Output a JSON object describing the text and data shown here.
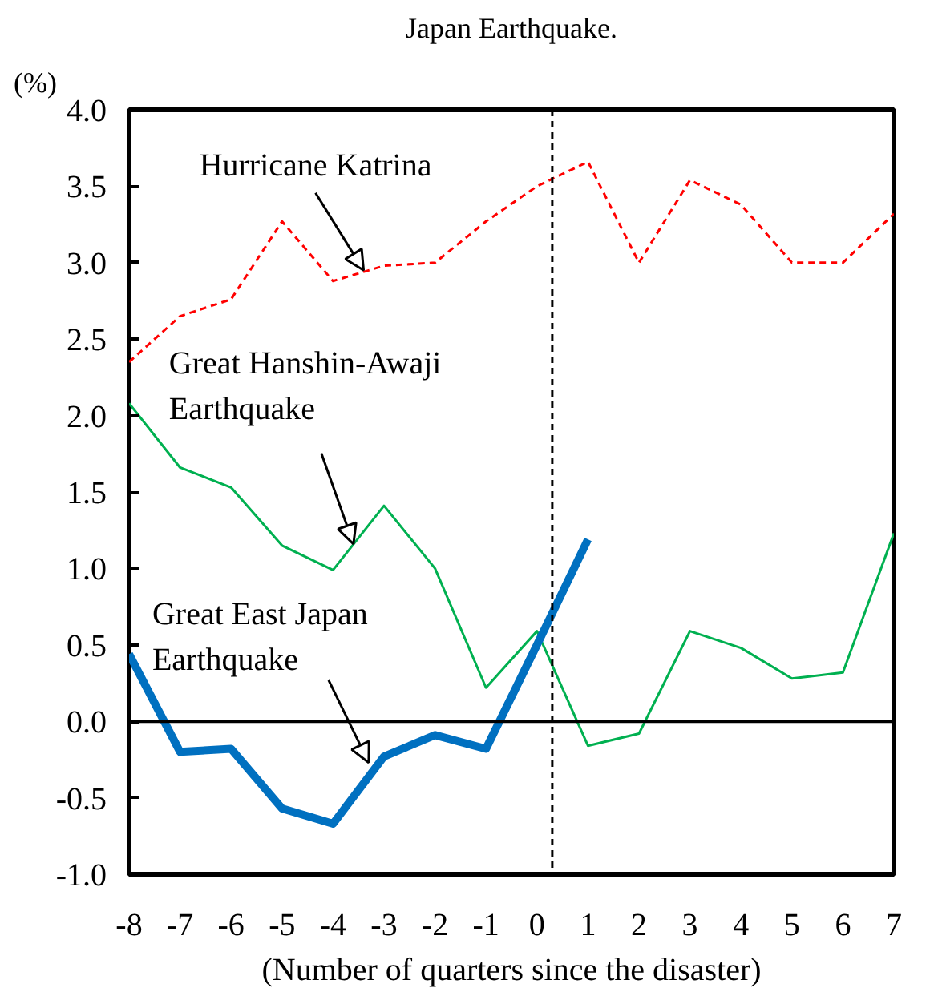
{
  "chart_data": {
    "type": "line",
    "title": "Japan Earthquake.",
    "ylabel": "(%)",
    "xlabel": "(Number of quarters since the disaster)",
    "x": [
      -8,
      -7,
      -6,
      -5,
      -4,
      -3,
      -2,
      -1,
      0,
      1,
      2,
      3,
      4,
      5,
      6,
      7
    ],
    "xlim": [
      -8,
      7
    ],
    "xticks": [
      -8,
      -7,
      -6,
      -5,
      -4,
      -3,
      -2,
      -1,
      0,
      1,
      2,
      3,
      4,
      5,
      6,
      7
    ],
    "ylim": [
      -1,
      4
    ],
    "yticks": [
      {
        "value": -1,
        "label": "-1.0"
      },
      {
        "value": -0.5,
        "label": "-0.5"
      },
      {
        "value": 0,
        "label": "0.0"
      },
      {
        "value": 0.5,
        "label": "0.5"
      },
      {
        "value": 1,
        "label": "1.0"
      },
      {
        "value": 1.5,
        "label": "1.5"
      },
      {
        "value": 2,
        "label": "2.0"
      },
      {
        "value": 2.5,
        "label": "2.5"
      },
      {
        "value": 3,
        "label": "3.0"
      },
      {
        "value": 3.5,
        "label": "3.5"
      },
      {
        "value": 4,
        "label": "4.0"
      }
    ],
    "grid": false,
    "series": [
      {
        "color": "#ff0000",
        "line_style": "dashed",
        "values": [
          2.35,
          2.65,
          2.76,
          3.27,
          2.88,
          2.98,
          3.0,
          3.27,
          3.5,
          3.66,
          3.0,
          3.54,
          3.38,
          3.0,
          3.0,
          3.32
        ]
      },
      {
        "color": "#00b050",
        "line_style": "solid",
        "values": [
          2.08,
          1.66,
          1.53,
          1.15,
          0.99,
          1.41,
          1.0,
          0.22,
          0.59,
          -0.16,
          -0.08,
          0.59,
          0.48,
          0.28,
          0.32,
          1.23
        ]
      },
      {
        "color": "#0070c0",
        "line_style": "solid",
        "values": [
          0.44,
          -0.2,
          -0.18,
          -0.57,
          -0.67,
          -0.23,
          -0.09,
          -0.18,
          0.5,
          1.19,
          null,
          null,
          null,
          null,
          null,
          null
        ]
      }
    ],
    "ref_lines": [
      {
        "axis": "y",
        "value": 0,
        "color": "#000000",
        "line_style": "solid"
      },
      {
        "axis": "x",
        "value": 0.3,
        "color": "#000000",
        "line_style": "dashed"
      }
    ],
    "annotations": [
      {
        "text": "Hurricane Katrina",
        "x": -3.4,
        "y": 2.95
      },
      {
        "text": "Great Hanshin-Awaji\nEarthquake",
        "x": -3.6,
        "y": 1.16
      },
      {
        "text": "Great East Japan\nEarthquake",
        "x": -3.3,
        "y": -0.27
      }
    ]
  }
}
